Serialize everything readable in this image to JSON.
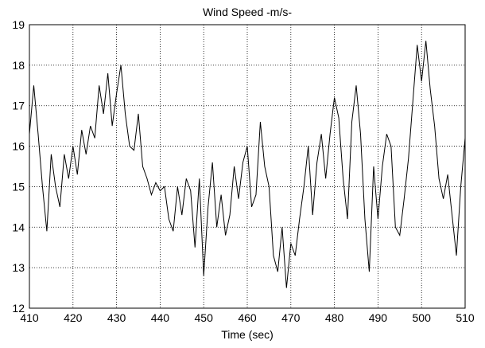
{
  "chart_data": {
    "type": "line",
    "title": "Wind Speed -m/s-",
    "x_label": "Time (sec)",
    "x": [
      410,
      411,
      412,
      413,
      414,
      415,
      416,
      417,
      418,
      419,
      420,
      421,
      422,
      423,
      424,
      425,
      426,
      427,
      428,
      429,
      430,
      431,
      432,
      433,
      434,
      435,
      436,
      437,
      438,
      439,
      440,
      441,
      442,
      443,
      444,
      445,
      446,
      447,
      448,
      449,
      450,
      451,
      452,
      453,
      454,
      455,
      456,
      457,
      458,
      459,
      460,
      461,
      462,
      463,
      464,
      465,
      466,
      467,
      468,
      469,
      470,
      471,
      472,
      473,
      474,
      475,
      476,
      477,
      478,
      479,
      480,
      481,
      482,
      483,
      484,
      485,
      486,
      487,
      488,
      489,
      490,
      491,
      492,
      493,
      494,
      495,
      496,
      497,
      498,
      499,
      500,
      501,
      502,
      503,
      504,
      505,
      506,
      507,
      508,
      509,
      510
    ],
    "series": [
      {
        "name": "Wind Speed",
        "color": "#000000",
        "values": [
          16.3,
          17.5,
          16.3,
          15.0,
          13.9,
          15.8,
          15.0,
          14.5,
          15.8,
          15.2,
          16.0,
          15.3,
          16.4,
          15.8,
          16.5,
          16.2,
          17.5,
          16.8,
          17.8,
          16.5,
          17.3,
          18.0,
          16.8,
          16.0,
          15.9,
          16.8,
          15.5,
          15.2,
          14.8,
          15.1,
          14.9,
          15.0,
          14.2,
          13.9,
          15.0,
          14.3,
          15.2,
          14.9,
          13.5,
          15.2,
          12.8,
          14.5,
          15.6,
          14.0,
          14.8,
          13.8,
          14.3,
          15.5,
          14.7,
          15.6,
          16.0,
          14.5,
          14.8,
          16.6,
          15.5,
          15.0,
          13.3,
          12.9,
          14.0,
          12.5,
          13.6,
          13.3,
          14.2,
          15.0,
          16.0,
          14.3,
          15.6,
          16.3,
          15.2,
          16.3,
          17.2,
          16.7,
          15.2,
          14.2,
          16.6,
          17.5,
          16.3,
          14.2,
          12.9,
          15.5,
          14.2,
          15.5,
          16.3,
          16.0,
          14.0,
          13.8,
          14.7,
          15.7,
          17.1,
          18.5,
          17.6,
          18.6,
          17.4,
          16.5,
          15.2,
          14.7,
          15.3,
          14.3,
          13.3,
          15.0,
          16.2
        ]
      }
    ],
    "xlim": [
      410,
      510
    ],
    "xticks": [
      410,
      420,
      430,
      440,
      450,
      460,
      470,
      480,
      490,
      500,
      510
    ],
    "ylim": [
      12,
      19
    ],
    "yticks": [
      12,
      13,
      14,
      15,
      16,
      17,
      18,
      19
    ],
    "grid": true
  }
}
